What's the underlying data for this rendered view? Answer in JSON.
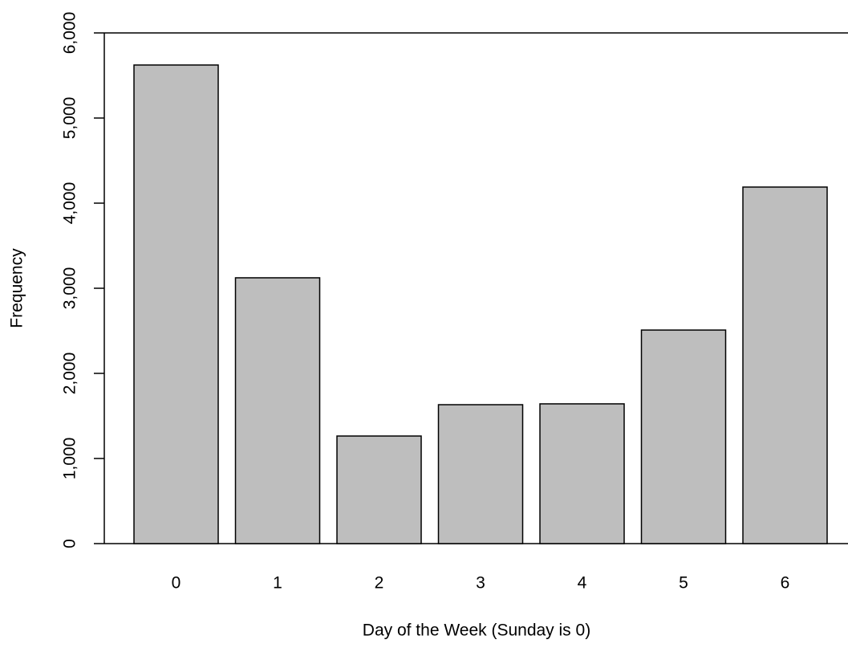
{
  "chart_data": {
    "type": "bar",
    "xlabel": "Day of the Week (Sunday is 0)",
    "ylabel": "Frequency",
    "categories": [
      "0",
      "1",
      "2",
      "3",
      "4",
      "5",
      "6"
    ],
    "values": [
      5623,
      3123,
      1264,
      1632,
      1642,
      2509,
      4189
    ],
    "color": "#bebebe",
    "ylim": [
      0,
      6000
    ],
    "yticks": [
      0,
      {
        "value": 1000,
        "label": "1,000"
      },
      {
        "value": 2000,
        "label": "2,000"
      },
      {
        "value": 3000,
        "label": "3,000"
      },
      {
        "value": 4000,
        "label": "4,000"
      },
      {
        "value": 5000,
        "label": "5,000"
      },
      {
        "value": 6000,
        "label": "6,000"
      }
    ]
  }
}
